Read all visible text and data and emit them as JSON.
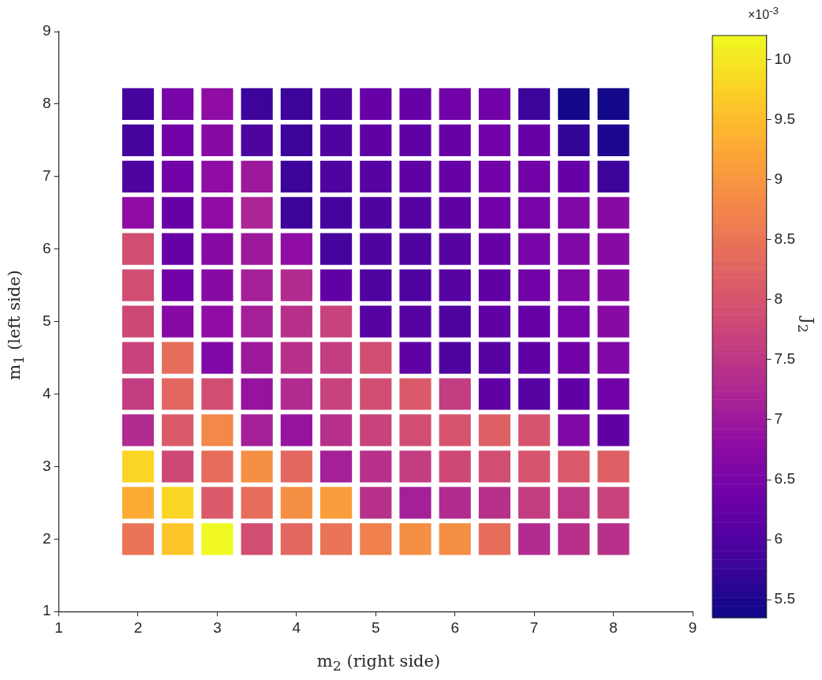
{
  "chart_data": {
    "type": "heatmap",
    "xlabel": "m$_{2}$ (right side)",
    "ylabel": "m$_{1}$ (left side)",
    "clabel": "J$_{2}$",
    "annotations": [
      "×10$^{-3}$"
    ],
    "x": [
      2,
      2.5,
      3,
      3.5,
      4,
      4.5,
      5,
      5.5,
      6,
      6.5,
      7,
      7.5,
      8
    ],
    "y": [
      8,
      7.5,
      7,
      6.5,
      6,
      5.5,
      5,
      4.5,
      4,
      3.5,
      3,
      2.5,
      2
    ],
    "cells": [
      [
        5.9,
        6.5,
        6.8,
        5.8,
        5.8,
        6.0,
        6.3,
        6.3,
        6.4,
        6.4,
        5.8,
        5.4,
        5.4
      ],
      [
        5.9,
        6.4,
        6.7,
        6.0,
        5.8,
        6.0,
        6.2,
        6.2,
        6.3,
        6.4,
        6.3,
        5.7,
        5.5
      ],
      [
        6.0,
        6.4,
        6.8,
        7.0,
        5.8,
        6.0,
        6.1,
        6.2,
        6.3,
        6.4,
        6.4,
        6.3,
        5.8
      ],
      [
        6.8,
        6.3,
        6.8,
        7.2,
        5.8,
        5.9,
        6.0,
        6.1,
        6.2,
        6.4,
        6.5,
        6.6,
        6.7
      ],
      [
        7.9,
        6.3,
        6.7,
        7.0,
        6.8,
        5.9,
        6.0,
        6.0,
        6.1,
        6.3,
        6.5,
        6.6,
        6.7
      ],
      [
        7.9,
        6.4,
        6.7,
        7.1,
        7.3,
        6.2,
        6.0,
        6.0,
        6.1,
        6.2,
        6.4,
        6.6,
        6.7
      ],
      [
        7.8,
        6.7,
        6.8,
        7.1,
        7.4,
        7.7,
        6.1,
        6.1,
        6.0,
        6.2,
        6.3,
        6.5,
        6.7
      ],
      [
        7.7,
        8.4,
        6.6,
        7.0,
        7.4,
        7.6,
        7.9,
        6.2,
        6.0,
        6.1,
        6.2,
        6.4,
        6.6
      ],
      [
        7.6,
        8.3,
        7.9,
        6.9,
        7.3,
        7.7,
        7.9,
        8.1,
        7.6,
        6.2,
        6.1,
        6.2,
        6.4
      ],
      [
        7.3,
        8.1,
        8.8,
        7.1,
        6.9,
        7.4,
        7.7,
        7.9,
        8.0,
        8.2,
        8.0,
        6.6,
        6.2
      ],
      [
        9.8,
        7.8,
        8.4,
        8.9,
        8.3,
        7.1,
        7.4,
        7.6,
        7.8,
        7.9,
        8.0,
        8.1,
        8.2
      ],
      [
        9.3,
        9.8,
        8.1,
        8.4,
        8.9,
        9.1,
        7.4,
        7.1,
        7.3,
        7.4,
        7.6,
        7.5,
        7.7
      ],
      [
        8.5,
        9.6,
        10.2,
        7.9,
        8.3,
        8.5,
        8.7,
        8.9,
        8.9,
        8.4,
        7.3,
        7.4,
        7.4
      ]
    ],
    "xlim": [
      1,
      9
    ],
    "xticks": [
      1,
      2,
      3,
      4,
      5,
      6,
      7,
      8,
      9
    ],
    "ylim": [
      1,
      9
    ],
    "yticks": [
      1,
      2,
      3,
      4,
      5,
      6,
      7,
      8,
      9
    ],
    "clim": [
      5.35,
      10.2
    ],
    "cticks": [
      5.5,
      6,
      6.5,
      7,
      7.5,
      8,
      8.5,
      9,
      9.5,
      10
    ]
  }
}
